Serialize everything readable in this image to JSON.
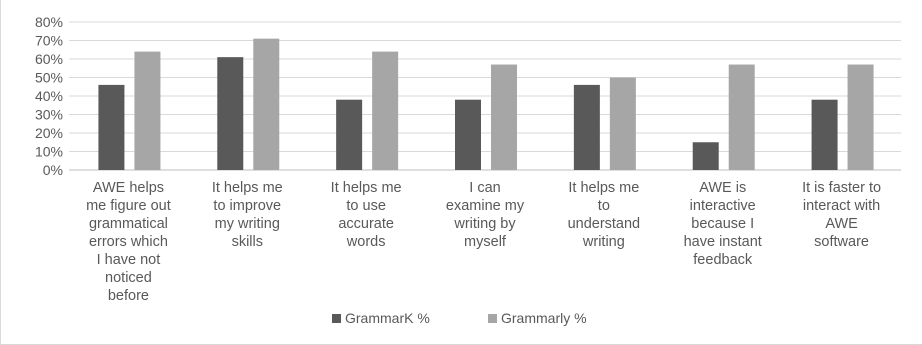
{
  "chart_data": {
    "type": "bar",
    "categories": [
      [
        "AWE helps",
        "me figure out",
        "grammatical",
        "errors which",
        "I have not",
        "noticed",
        "before"
      ],
      [
        "It helps me",
        "to improve",
        "my writing",
        "skills"
      ],
      [
        "It helps me",
        "to use",
        "accurate",
        "words"
      ],
      [
        "I can",
        "examine my",
        "writing by",
        "myself"
      ],
      [
        "It helps me",
        "to",
        "understand",
        "writing"
      ],
      [
        "AWE is",
        "interactive",
        "because I",
        "have instant",
        "feedback"
      ],
      [
        "It is faster to",
        "interact with",
        "AWE",
        "software"
      ]
    ],
    "series": [
      {
        "name": "GrammarK %",
        "color": "#595959",
        "values": [
          46,
          61,
          38,
          38,
          46,
          15,
          38
        ]
      },
      {
        "name": "Grammarly %",
        "color": "#a6a6a6",
        "values": [
          64,
          71,
          64,
          57,
          50,
          57,
          57
        ]
      }
    ],
    "ylim": [
      0,
      80
    ],
    "y_ticks": [
      "0%",
      "10%",
      "20%",
      "30%",
      "40%",
      "50%",
      "60%",
      "70%",
      "80%"
    ],
    "grid": true,
    "legend_position": "bottom-center"
  }
}
